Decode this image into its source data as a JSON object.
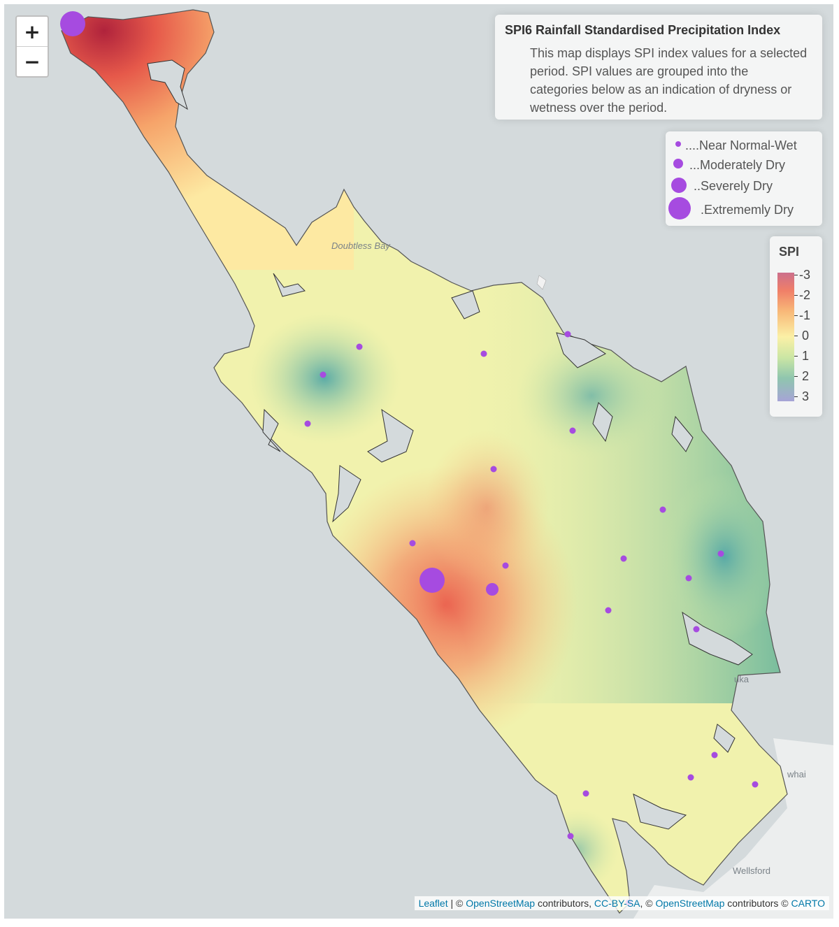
{
  "map": {
    "zoom_in_label": "+",
    "zoom_out_label": "−",
    "place_labels": {
      "doubtless_bay": "Doubtless Bay",
      "wellsford": "Wellsford",
      "partial_uka": "uka",
      "partial_whai": "whai"
    },
    "spi_markers": [
      {
        "name": "cape-reinga",
        "class": "Extremely Dry"
      },
      {
        "name": "west-coast-south",
        "class": "Extremely Dry"
      },
      {
        "name": "central-south",
        "class": "Moderately Dry"
      },
      {
        "name": "others",
        "class": "Near Normal-Wet"
      }
    ]
  },
  "info_box": {
    "title": "SPI6 Rainfall Standardised Precipitation Index",
    "description": "This map displays SPI index values for a selected period. SPI values are grouped into the categories below as an indication of dryness or wetness over the period."
  },
  "size_legend": {
    "items": [
      {
        "label": "....Near Normal-Wet"
      },
      {
        "label": "...Moderately Dry"
      },
      {
        "label": "..Severely Dry"
      },
      {
        "label": ".Extrememly Dry"
      }
    ]
  },
  "spi_legend": {
    "title": "SPI",
    "ticks": [
      "-3",
      "-2",
      "-1",
      "0",
      "1",
      "2",
      "3"
    ]
  },
  "attribution": {
    "leaflet": "Leaflet",
    "sep1": " | © ",
    "osm1": "OpenStreetMap",
    "contrib1": " contributors, ",
    "ccbysa": "CC-BY-SA",
    "sep2": ", © ",
    "osm2": "OpenStreetMap",
    "contrib2": " contributors © ",
    "carto": "CARTO"
  },
  "colors": {
    "marker": "#a64be0",
    "spi_dry": "#cc3355",
    "spi_normal": "#fbf3b0",
    "spi_wet": "#5fb0a0",
    "sea": "#d4dadc",
    "link": "#0078a8"
  }
}
